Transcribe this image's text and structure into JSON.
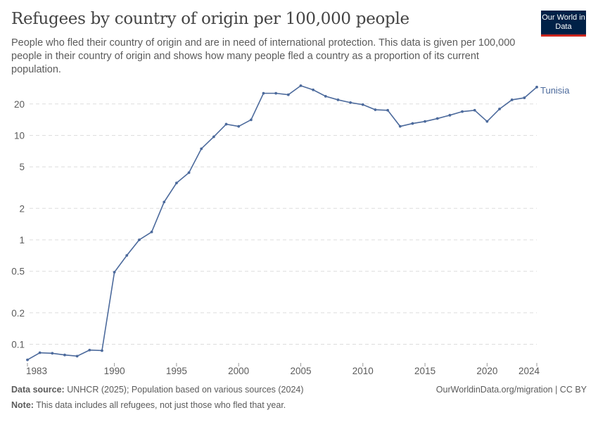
{
  "header": {
    "title": "Refugees by country of origin per 100,000 people",
    "subtitle": "People who fled their country of origin and are in need of international protection. This data is given per 100,000 people in their country of origin and shows how many people fled a country as a proportion of its current population.",
    "logo": "Our World in Data"
  },
  "footer": {
    "source_label": "Data source:",
    "source": "UNHCR (2025); Population based on various sources (2024)",
    "note_label": "Note:",
    "note": "This data includes all refugees, not just those who fled that year.",
    "link": "OurWorldinData.org/migration | CC BY"
  },
  "colors": {
    "series": "#4c6a9c",
    "grid": "#dddddd",
    "text": "#5b5b5b"
  },
  "chart_data": {
    "type": "line",
    "title": "Refugees by country of origin per 100,000 people",
    "yscale": "log",
    "ylim": [
      0.07,
      32
    ],
    "xlim": [
      1983,
      2024
    ],
    "grid": true,
    "yticks": [
      0.1,
      0.2,
      0.5,
      1,
      2,
      5,
      10,
      20
    ],
    "ytick_labels": [
      "0.1",
      "0.2",
      "0.5",
      "1",
      "2",
      "5",
      "10",
      "20"
    ],
    "xticks": [
      1983,
      1990,
      1995,
      2000,
      2005,
      2010,
      2015,
      2020,
      2024
    ],
    "xtick_labels": [
      "1983",
      "1990",
      "1995",
      "2000",
      "2005",
      "2010",
      "2015",
      "2020",
      "2024"
    ],
    "legend": "inline-right",
    "series": [
      {
        "name": "Tunisia",
        "x": [
          1983,
          1984,
          1985,
          1986,
          1987,
          1988,
          1989,
          1990,
          1991,
          1992,
          1993,
          1994,
          1995,
          1996,
          1997,
          1998,
          1999,
          2000,
          2001,
          2002,
          2003,
          2004,
          2005,
          2006,
          2007,
          2008,
          2009,
          2010,
          2011,
          2012,
          2013,
          2014,
          2015,
          2016,
          2017,
          2018,
          2019,
          2020,
          2021,
          2022,
          2023,
          2024
        ],
        "y": [
          0.071,
          0.083,
          0.082,
          0.079,
          0.077,
          0.088,
          0.087,
          0.49,
          0.71,
          1.0,
          1.19,
          2.3,
          3.5,
          4.4,
          7.45,
          9.7,
          12.8,
          12.2,
          14.1,
          25.3,
          25.3,
          24.5,
          29.9,
          27.3,
          23.7,
          21.9,
          20.6,
          19.7,
          17.6,
          17.4,
          12.2,
          13.0,
          13.6,
          14.5,
          15.6,
          16.9,
          17.4,
          13.6,
          17.9,
          21.9,
          22.9,
          29.0
        ]
      }
    ]
  }
}
